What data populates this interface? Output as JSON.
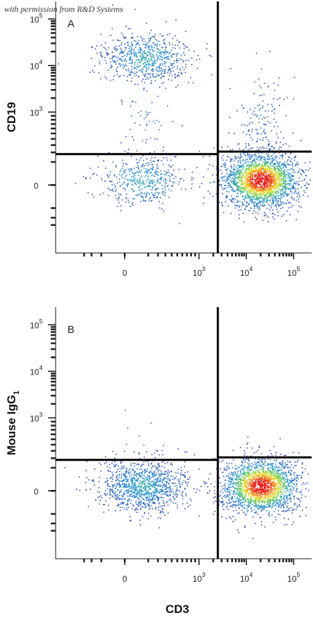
{
  "watermark": "with permission from R&D Systems",
  "chart_data": [
    {
      "type": "scatter",
      "panel_label": "A",
      "xlabel": "",
      "ylabel": "CD19",
      "x_tick_labels": [
        "0",
        "10",
        "10",
        "10"
      ],
      "x_tick_exponents": [
        "",
        "3",
        "4",
        "5"
      ],
      "y_tick_labels": [
        "0",
        "10",
        "10",
        "10"
      ],
      "y_tick_exponents": [
        "",
        "3",
        "4",
        "5"
      ],
      "gates": {
        "vertical_x": 2500,
        "horizontal_y_left": 180,
        "horizontal_y_right": 210
      },
      "populations": [
        {
          "x_center": 80,
          "y_center": 15000,
          "count": 700,
          "density": "medium"
        },
        {
          "x_center": 60,
          "y_center": 5,
          "count": 450,
          "density": "medium"
        },
        {
          "x_center": 20000,
          "y_center": 5,
          "count": 2200,
          "density": "high"
        },
        {
          "x_center": 20000,
          "y_center": 700,
          "count": 140,
          "density": "low"
        },
        {
          "x_center": 100,
          "y_center": 800,
          "count": 60,
          "density": "low"
        }
      ]
    },
    {
      "type": "scatter",
      "panel_label": "B",
      "xlabel": "CD3",
      "ylabel": "Mouse IgG",
      "ylabel_subscript": "1",
      "x_tick_labels": [
        "0",
        "10",
        "10",
        "10"
      ],
      "x_tick_exponents": [
        "",
        "3",
        "4",
        "5"
      ],
      "y_tick_labels": [
        "0",
        "10",
        "10",
        "10"
      ],
      "y_tick_exponents": [
        "",
        "3",
        "4",
        "5"
      ],
      "gates": {
        "vertical_x": 2500,
        "horizontal_y_left": 180,
        "horizontal_y_right": 210
      },
      "populations": [
        {
          "x_center": 60,
          "y_center": 5,
          "count": 1100,
          "density": "medium"
        },
        {
          "x_center": 20000,
          "y_center": 5,
          "count": 2000,
          "density": "high"
        },
        {
          "x_center": 80,
          "y_center": 300,
          "count": 12,
          "density": "low"
        }
      ]
    }
  ]
}
